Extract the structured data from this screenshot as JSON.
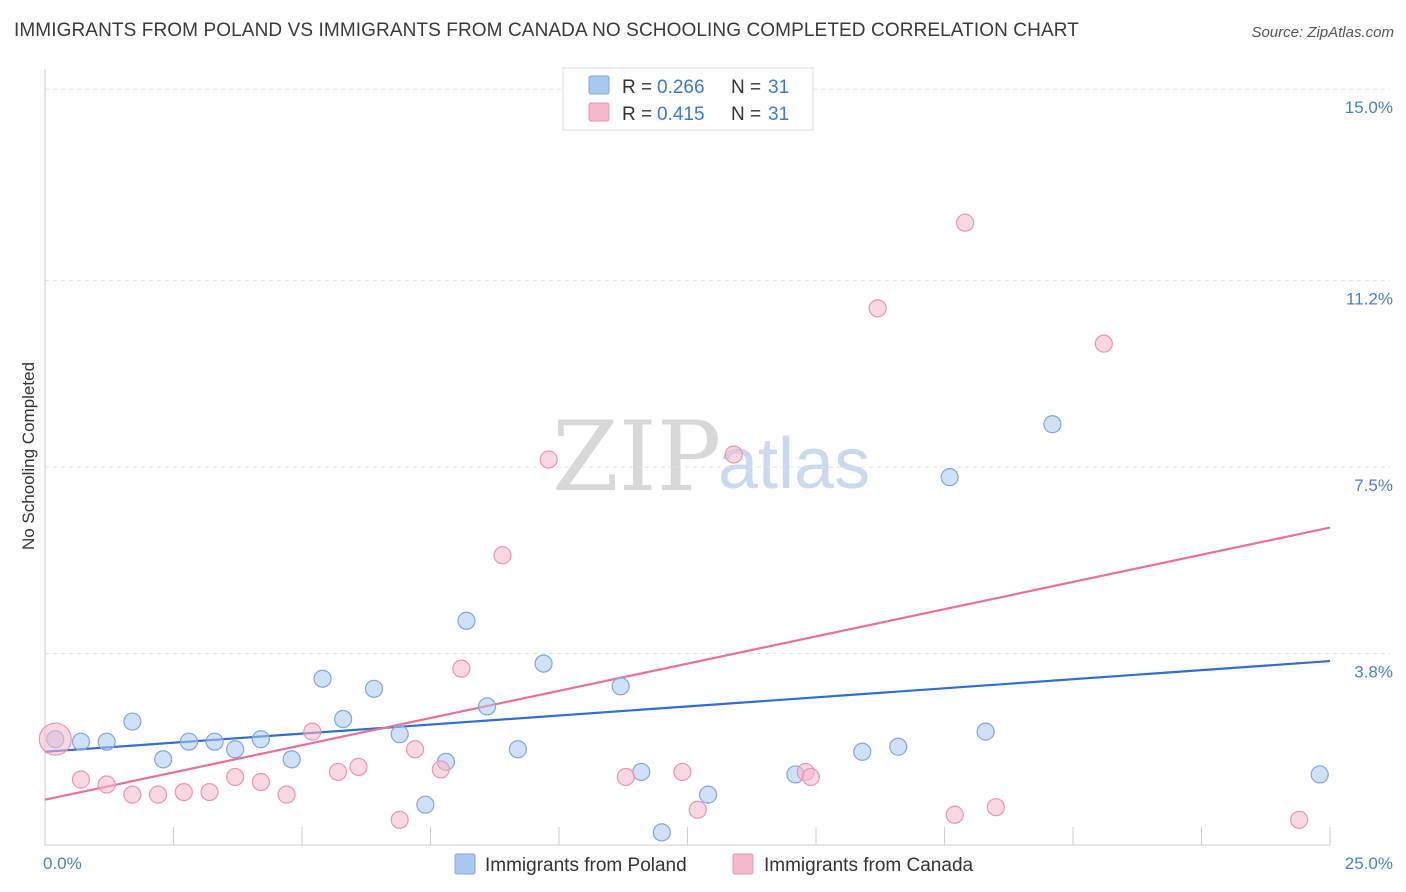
{
  "header": {
    "title": "IMMIGRANTS FROM POLAND VS IMMIGRANTS FROM CANADA NO SCHOOLING COMPLETED CORRELATION CHART",
    "source": "Source: ZipAtlas.com"
  },
  "watermark": {
    "zip": "ZIP",
    "atlas": "atlas"
  },
  "legend": {
    "rows": [
      {
        "r_label": "R =",
        "r_value": "0.266",
        "n_label": "N =",
        "n_value": "31",
        "color": "#a9c8f0"
      },
      {
        "r_label": "R =",
        "r_value": "0.415",
        "n_label": "N =",
        "n_value": "31",
        "color": "#f6b8cb"
      }
    ]
  },
  "bottom_legend": [
    {
      "label": "Immigrants from Poland",
      "color": "#a9c8f0"
    },
    {
      "label": "Immigrants from Canada",
      "color": "#f6b8cb"
    }
  ],
  "chart_data": {
    "type": "scatter",
    "title": "IMMIGRANTS FROM POLAND VS IMMIGRANTS FROM CANADA NO SCHOOLING COMPLETED CORRELATION CHART",
    "ylabel": "No Schooling Completed",
    "xlabel": "",
    "xlim": [
      0,
      25
    ],
    "ylim": [
      0,
      15.4
    ],
    "x_ticks": [
      "0.0%",
      "25.0%"
    ],
    "y_ticks": [
      {
        "value": 3.8,
        "label": "3.8%"
      },
      {
        "value": 7.5,
        "label": "7.5%"
      },
      {
        "value": 11.2,
        "label": "11.2%"
      },
      {
        "value": 15.0,
        "label": "15.0%"
      }
    ],
    "grid": "horizontal dashed",
    "series": [
      {
        "name": "Immigrants from Poland",
        "color": "#a9c8f0",
        "stroke": "#7ea8e0",
        "trend_color": "#2f6fcf",
        "trend": [
          [
            0,
            1.85
          ],
          [
            25,
            3.65
          ]
        ],
        "points": [
          [
            0.2,
            2.1
          ],
          [
            0.7,
            2.05
          ],
          [
            1.2,
            2.05
          ],
          [
            1.7,
            2.45
          ],
          [
            2.3,
            1.7
          ],
          [
            2.8,
            2.05
          ],
          [
            3.3,
            2.05
          ],
          [
            3.7,
            1.9
          ],
          [
            4.2,
            2.1
          ],
          [
            4.8,
            1.7
          ],
          [
            5.4,
            3.3
          ],
          [
            5.8,
            2.5
          ],
          [
            6.4,
            3.1
          ],
          [
            6.9,
            2.2
          ],
          [
            7.4,
            0.8
          ],
          [
            7.8,
            1.65
          ],
          [
            8.2,
            4.45
          ],
          [
            8.6,
            2.75
          ],
          [
            9.2,
            1.9
          ],
          [
            9.7,
            3.6
          ],
          [
            11.2,
            3.15
          ],
          [
            11.6,
            1.45
          ],
          [
            12.0,
            0.25
          ],
          [
            12.9,
            1.0
          ],
          [
            14.6,
            1.4
          ],
          [
            15.9,
            1.85
          ],
          [
            16.6,
            1.95
          ],
          [
            17.6,
            7.3
          ],
          [
            18.3,
            2.25
          ],
          [
            19.6,
            8.35
          ],
          [
            24.8,
            1.4
          ]
        ]
      },
      {
        "name": "Immigrants from Canada",
        "color": "#f6b8cb",
        "stroke": "#ef93b0",
        "trend_color": "#e8709a",
        "trend": [
          [
            0,
            0.9
          ],
          [
            25,
            6.3
          ]
        ],
        "points": [
          [
            0.2,
            2.1
          ],
          [
            0.7,
            1.3
          ],
          [
            1.2,
            1.2
          ],
          [
            1.7,
            1.0
          ],
          [
            2.2,
            1.0
          ],
          [
            2.7,
            1.05
          ],
          [
            3.2,
            1.05
          ],
          [
            3.7,
            1.35
          ],
          [
            4.2,
            1.25
          ],
          [
            4.7,
            1.0
          ],
          [
            5.2,
            2.25
          ],
          [
            5.7,
            1.45
          ],
          [
            6.1,
            1.55
          ],
          [
            6.9,
            0.5
          ],
          [
            7.2,
            1.9
          ],
          [
            7.7,
            1.5
          ],
          [
            8.1,
            3.5
          ],
          [
            8.9,
            5.75
          ],
          [
            9.8,
            7.65
          ],
          [
            11.3,
            1.35
          ],
          [
            12.4,
            1.45
          ],
          [
            12.7,
            0.7
          ],
          [
            13.4,
            7.75
          ],
          [
            14.8,
            1.45
          ],
          [
            14.9,
            1.35
          ],
          [
            16.2,
            10.65
          ],
          [
            17.7,
            0.6
          ],
          [
            17.9,
            12.35
          ],
          [
            18.5,
            0.75
          ],
          [
            20.6,
            9.95
          ],
          [
            24.4,
            0.5
          ]
        ]
      }
    ]
  }
}
